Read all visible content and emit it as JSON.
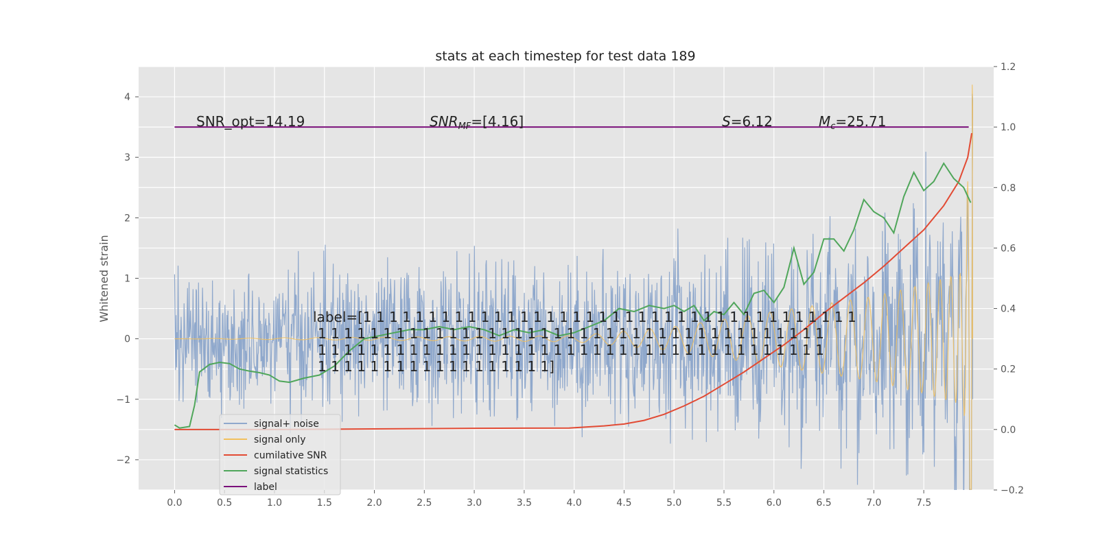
{
  "chart_data": {
    "type": "line",
    "title": "stats at each timestep for test data 189",
    "ylabel": "Whitened strain",
    "xlim": [
      -0.36,
      8.2
    ],
    "ylim": [
      -2.5,
      4.5
    ],
    "y2lim": [
      -0.2,
      1.2
    ],
    "grid": true,
    "legend_position": "lower-left",
    "x_ticks": [
      "0.0",
      "0.5",
      "1.0",
      "1.5",
      "2.0",
      "2.5",
      "3.0",
      "3.5",
      "4.0",
      "4.5",
      "5.0",
      "5.5",
      "6.0",
      "6.5",
      "7.0",
      "7.5"
    ],
    "y_ticks": [
      "−2",
      "−1",
      "0",
      "1",
      "2",
      "3",
      "4"
    ],
    "y2_ticks": [
      "−0.2",
      "0.0",
      "0.2",
      "0.4",
      "0.6",
      "0.8",
      "1.0",
      "1.2"
    ],
    "colors": {
      "plot_bg": "#e5e5e5",
      "grid": "#ffffff",
      "signal_noise": "#8fa8cc",
      "signal_only": "#f2c05c",
      "snr": "#e24a33",
      "statistics": "#4fa65a",
      "label": "#7a0f7a"
    },
    "annotations": {
      "snr_opt": "SNR_opt=14.19",
      "snr_mf_base": "SNR",
      "snr_mf_sub": "MF",
      "snr_mf_value": "=[4.16]",
      "s_name": "S",
      "s_value": "=6.12",
      "mc_base": "M",
      "mc_sub": "c",
      "mc_value": "=25.71",
      "label_lines": [
        "label=[1 1 1 1 1 1 1 1 1 1 1 1 1 1 1 1 1 1 1 1 1 1 1 1 1 1 1 1 1 1 1 1 1 1 1 1 1 1",
        "1 1 1 1 1 1 1 1 1 1 1 1 1 1 1 1 1 1 1 1 1 1 1 1 1 1 1 1 1 1 1 1 1 1 1 1 1 1 1",
        "1 1 1 1 1 1 1 1 1 1 1 1 1 1 1 1 1 1 1 1 1 1 1 1 1 1 1 1 1 1 1 1 1 1 1 1 1 1 1",
        "1 1 1 1 1 1 1 1 1 1 1 1 1 1 1 1 1 1]"
      ]
    },
    "series": [
      {
        "name": "signal+ noise",
        "axis": "left",
        "description_samples_x": [
          0,
          8
        ],
        "amplitude_envelope": [
          [
            0,
            1.2
          ],
          [
            4,
            1.35
          ],
          [
            6,
            1.6
          ],
          [
            7.5,
            2.0
          ],
          [
            7.99,
            2.2
          ]
        ]
      },
      {
        "name": "signal only",
        "axis": "left",
        "amplitude_envelope": [
          [
            0,
            0.0
          ],
          [
            4,
            0.05
          ],
          [
            5,
            0.2
          ],
          [
            6,
            0.45
          ],
          [
            7,
            0.7
          ],
          [
            7.5,
            0.9
          ],
          [
            7.9,
            1.1
          ],
          [
            7.98,
            4.2
          ]
        ]
      },
      {
        "name": "cumilative SNR",
        "axis": "right",
        "x": [
          0,
          1.0,
          2.0,
          3.0,
          3.95,
          4.3,
          4.5,
          4.7,
          4.9,
          5.1,
          5.3,
          5.5,
          5.7,
          5.9,
          6.1,
          6.3,
          6.5,
          6.7,
          6.9,
          7.1,
          7.3,
          7.5,
          7.7,
          7.85,
          7.94,
          7.98
        ],
        "y": [
          0.0,
          0.0,
          0.002,
          0.004,
          0.005,
          0.012,
          0.018,
          0.03,
          0.05,
          0.078,
          0.11,
          0.15,
          0.19,
          0.235,
          0.28,
          0.33,
          0.385,
          0.435,
          0.485,
          0.54,
          0.6,
          0.66,
          0.74,
          0.82,
          0.9,
          0.98
        ]
      },
      {
        "name": "signal statistics",
        "axis": "right",
        "x": [
          0.0,
          0.05,
          0.15,
          0.2,
          0.25,
          0.35,
          0.45,
          0.55,
          0.65,
          0.75,
          0.85,
          0.95,
          1.05,
          1.15,
          1.3,
          1.45,
          1.6,
          1.75,
          1.9,
          2.05,
          2.2,
          2.35,
          2.5,
          2.65,
          2.8,
          2.95,
          3.1,
          3.25,
          3.4,
          3.55,
          3.7,
          3.85,
          4.0,
          4.15,
          4.3,
          4.45,
          4.6,
          4.75,
          4.9,
          5.0,
          5.1,
          5.2,
          5.3,
          5.4,
          5.5,
          5.6,
          5.7,
          5.8,
          5.9,
          6.0,
          6.1,
          6.2,
          6.3,
          6.4,
          6.5,
          6.6,
          6.7,
          6.8,
          6.9,
          7.0,
          7.1,
          7.2,
          7.3,
          7.4,
          7.5,
          7.6,
          7.7,
          7.8,
          7.9,
          7.97
        ],
        "y": [
          0.015,
          0.005,
          0.01,
          0.08,
          0.19,
          0.215,
          0.222,
          0.218,
          0.2,
          0.193,
          0.188,
          0.18,
          0.16,
          0.156,
          0.17,
          0.18,
          0.21,
          0.26,
          0.3,
          0.31,
          0.32,
          0.33,
          0.33,
          0.34,
          0.33,
          0.34,
          0.33,
          0.31,
          0.33,
          0.32,
          0.33,
          0.31,
          0.32,
          0.34,
          0.36,
          0.4,
          0.39,
          0.41,
          0.4,
          0.41,
          0.39,
          0.41,
          0.36,
          0.39,
          0.38,
          0.42,
          0.38,
          0.45,
          0.46,
          0.42,
          0.47,
          0.6,
          0.48,
          0.52,
          0.63,
          0.63,
          0.59,
          0.66,
          0.76,
          0.72,
          0.7,
          0.65,
          0.77,
          0.85,
          0.79,
          0.82,
          0.88,
          0.83,
          0.8,
          0.75
        ]
      },
      {
        "name": "label",
        "axis": "right",
        "x": [
          0,
          7.95
        ],
        "y": [
          1.0,
          1.0
        ]
      }
    ]
  }
}
